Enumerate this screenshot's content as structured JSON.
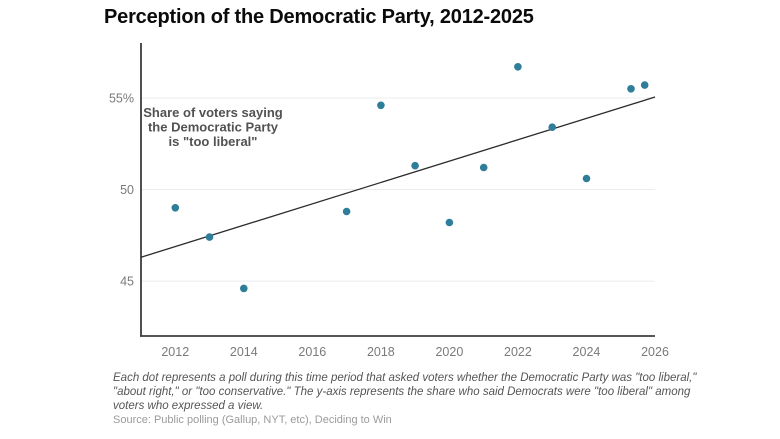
{
  "header": {
    "title": "Perception of the Democratic Party, 2012-2025"
  },
  "footer": {
    "caption_lines": [
      "Each dot represents a poll during this time period that asked voters whether the Democratic Party was \"too liberal,\"",
      "\"about right,\" or \"too conservative.\" The y-axis represents the share who said Democrats were \"too liberal\" among",
      "voters who expressed a view."
    ],
    "source": "Source: Public polling (Gallup, NYT, etc), Deciding to Win"
  },
  "colors": {
    "dot": "#2e7e9a",
    "trend": "#2b2b2b",
    "axis": "#3d3d3d",
    "grid": "#ececec",
    "tick_label": "#7a7a7a",
    "annotation": "#525254",
    "title": "#0b0b0b"
  },
  "chart_data": {
    "type": "scatter",
    "title": "Perception of the Democratic Party, 2012-2025",
    "xlabel": "",
    "ylabel": "Share of voters saying the Democratic Party is \"too liberal\" (%)",
    "xlim": [
      2011,
      2026
    ],
    "ylim": [
      42,
      58
    ],
    "grid": "horizontal",
    "legend": "none",
    "x_ticks": [
      2012,
      2014,
      2016,
      2018,
      2020,
      2022,
      2024,
      2026
    ],
    "y_ticks": [
      {
        "v": 45,
        "label": "45"
      },
      {
        "v": 50,
        "label": "50"
      },
      {
        "v": 55,
        "label": "55%"
      }
    ],
    "annotation_lines": [
      "Share of voters saying",
      "the Democratic Party",
      "is \"too liberal\""
    ],
    "points": [
      {
        "x": 2012.0,
        "y": 49.0
      },
      {
        "x": 2013.0,
        "y": 47.4
      },
      {
        "x": 2014.0,
        "y": 44.6
      },
      {
        "x": 2017.0,
        "y": 48.8
      },
      {
        "x": 2018.0,
        "y": 54.6
      },
      {
        "x": 2019.0,
        "y": 51.3
      },
      {
        "x": 2020.0,
        "y": 48.2
      },
      {
        "x": 2021.0,
        "y": 51.2
      },
      {
        "x": 2022.0,
        "y": 56.7
      },
      {
        "x": 2023.0,
        "y": 53.4
      },
      {
        "x": 2024.0,
        "y": 50.6
      },
      {
        "x": 2025.3,
        "y": 55.5
      },
      {
        "x": 2025.7,
        "y": 55.7
      }
    ],
    "trendline": {
      "x1": 2011,
      "y1": 46.3,
      "x2": 2026,
      "y2": 55.05
    }
  }
}
